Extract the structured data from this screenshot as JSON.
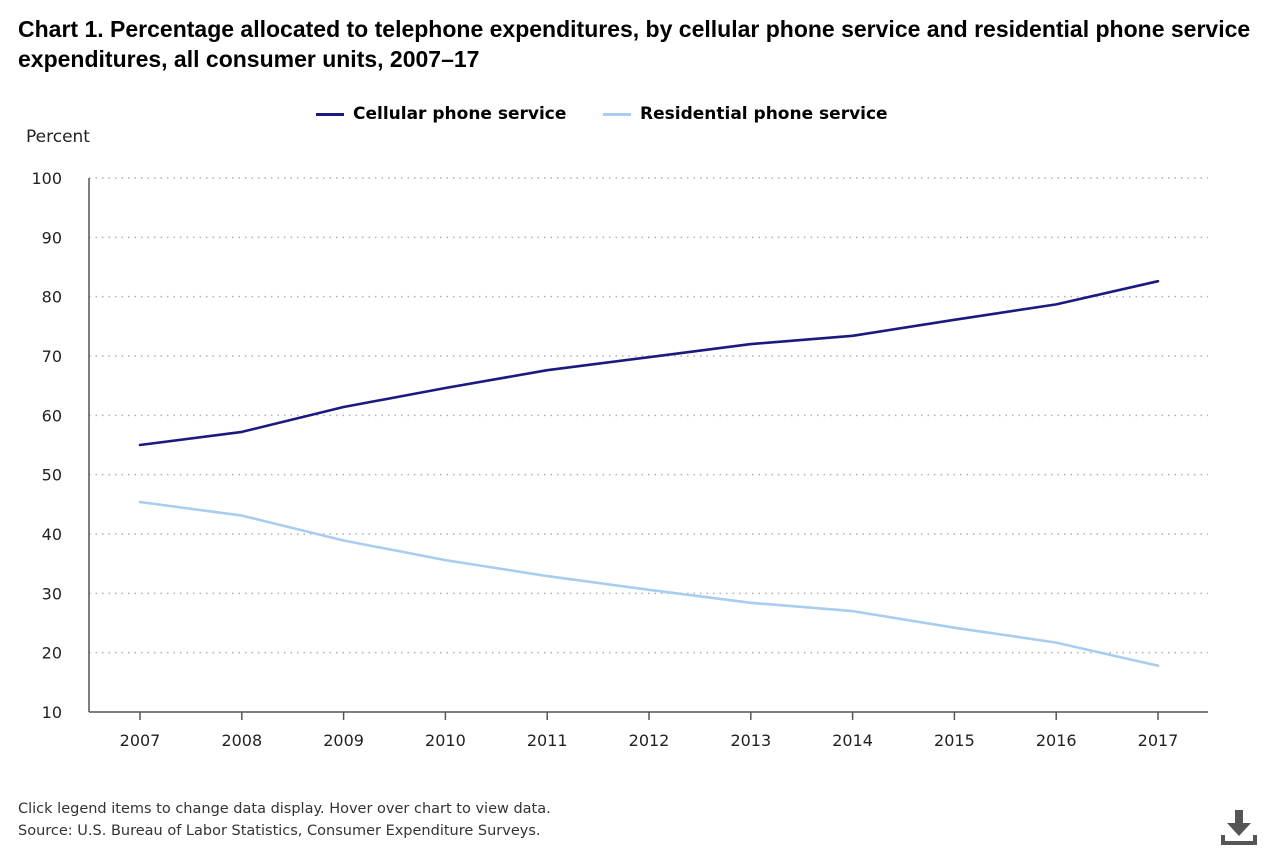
{
  "title": "Chart 1. Percentage allocated to telephone expenditures, by cellular phone service and residential phone service expenditures, all consumer units, 2007–17",
  "footer": {
    "note": "Click legend items to change data display. Hover over chart to view data.",
    "source": "Source: U.S. Bureau of Labor Statistics, Consumer Expenditure Surveys."
  },
  "colors": {
    "cellular": "#1a1a80",
    "residential": "#a9cdef",
    "grid": "#b0b0b0",
    "axis": "#555555",
    "download": "#555555"
  },
  "icons": {
    "download": "download-icon"
  },
  "chart_data": {
    "type": "line",
    "title": "Chart 1. Percentage allocated to telephone expenditures, by cellular phone service and residential phone service expenditures, all consumer units, 2007–17",
    "ylabel": "Percent",
    "xlabel": "",
    "x": [
      "2007",
      "2008",
      "2009",
      "2010",
      "2011",
      "2012",
      "2013",
      "2014",
      "2015",
      "2016",
      "2017"
    ],
    "ylim": [
      10,
      100
    ],
    "yticks": [
      10,
      20,
      30,
      40,
      50,
      60,
      70,
      80,
      90,
      100
    ],
    "grid": true,
    "legend": "top-center",
    "series": [
      {
        "name": "Cellular phone service",
        "color": "#1a1a80",
        "values": [
          55.0,
          57.2,
          61.4,
          64.6,
          67.6,
          69.8,
          72.0,
          73.4,
          76.1,
          78.7,
          82.6
        ]
      },
      {
        "name": "Residential phone service",
        "color": "#a9cdef",
        "values": [
          45.4,
          43.1,
          38.9,
          35.6,
          32.9,
          30.6,
          28.4,
          27.0,
          24.2,
          21.7,
          17.8
        ]
      }
    ]
  }
}
